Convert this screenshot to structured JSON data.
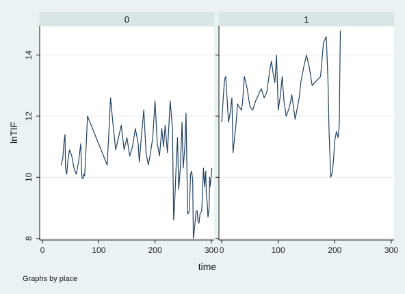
{
  "chart_data": {
    "type": "line",
    "ylabel": "lnTIF",
    "xlabel": "time",
    "note": "Graphs by place",
    "xlim": [
      -5,
      305
    ],
    "ylim": [
      7.95,
      14.95
    ],
    "xticks": [
      0,
      100,
      200,
      300
    ],
    "yticks": [
      8,
      10,
      12,
      14
    ],
    "grid": true,
    "colors": {
      "background": "#eaf2f3",
      "panel": "#ffffff",
      "strip": "#d9e5e7",
      "line": "#1f3f5f",
      "grid": "#e4eaec",
      "axis": "#111111"
    },
    "panels": [
      {
        "label": "0",
        "series": [
          {
            "x": [
              33,
              36,
              38,
              40,
              41,
              43,
              45,
              48,
              52,
              56,
              60,
              64,
              68,
              70,
              72,
              73,
              75,
              78,
              80,
              115,
              118,
              121,
              125,
              130,
              135,
              140,
              145,
              150,
              155,
              160,
              165,
              170,
              172,
              176,
              180,
              184,
              188,
              192,
              196,
              200,
              204,
              208,
              212,
              215,
              218,
              222,
              227,
              231,
              233,
              235,
              238,
              240,
              242,
              245,
              248,
              250,
              253,
              255,
              258,
              261,
              263,
              265,
              267,
              268,
              270,
              273,
              275,
              276,
              278,
              280,
              283,
              286,
              288,
              290,
              291,
              293,
              294,
              296,
              297,
              298,
              301
            ],
            "y": [
              10.4,
              10.6,
              11.1,
              11.4,
              10.3,
              10.1,
              10.5,
              10.9,
              10.7,
              10.3,
              10.1,
              10.5,
              11.1,
              10.0,
              9.95,
              10.1,
              10.05,
              11.2,
              12.0,
              10.4,
              11.5,
              12.6,
              11.8,
              10.9,
              11.3,
              11.7,
              10.9,
              11.3,
              10.7,
              11.0,
              11.6,
              11.1,
              10.5,
              11.4,
              12.2,
              10.8,
              10.4,
              10.8,
              11.3,
              12.5,
              11.1,
              10.7,
              11.6,
              11.0,
              11.7,
              10.8,
              12.5,
              11.6,
              8.6,
              9.2,
              10.6,
              11.3,
              9.6,
              10.3,
              11.8,
              10.3,
              11.0,
              12.1,
              8.8,
              8.9,
              10.1,
              10.2,
              9.9,
              8.0,
              8.3,
              8.9,
              8.9,
              8.6,
              8.5,
              8.8,
              8.9,
              10.3,
              9.7,
              10.2,
              9.5,
              9.1,
              8.7,
              9.0,
              10.0,
              9.7,
              10.3
            ]
          }
        ]
      },
      {
        "label": "1",
        "series": [
          {
            "x": [
              0,
              3,
              5,
              7,
              10,
              12,
              14,
              18,
              20,
              25,
              28,
              31,
              35,
              37,
              40,
              45,
              50,
              55,
              60,
              65,
              70,
              75,
              80,
              85,
              88,
              91,
              94,
              97,
              100,
              104,
              107,
              110,
              114,
              118,
              121,
              124,
              127,
              130,
              134,
              137,
              140,
              145,
              150,
              155,
              160,
              170,
              175,
              180,
              185,
              188,
              190,
              193,
              196,
              198,
              200,
              203,
              206,
              208,
              210
            ],
            "y": [
              11.8,
              12.7,
              13.2,
              13.3,
              12.4,
              11.8,
              12.0,
              12.6,
              10.8,
              11.7,
              12.4,
              12.3,
              12.2,
              12.5,
              13.3,
              12.9,
              12.3,
              12.2,
              12.5,
              12.7,
              12.9,
              12.6,
              12.8,
              13.5,
              13.8,
              13.4,
              13.1,
              14.0,
              12.2,
              12.7,
              13.3,
              12.5,
              12.0,
              12.2,
              12.4,
              12.7,
              12.3,
              11.9,
              12.3,
              12.6,
              13.1,
              13.6,
              14.0,
              13.6,
              13.0,
              13.2,
              13.3,
              14.4,
              14.6,
              13.2,
              11.5,
              10.0,
              10.2,
              10.6,
              11.2,
              11.5,
              11.3,
              11.7,
              14.8
            ]
          }
        ]
      }
    ]
  }
}
